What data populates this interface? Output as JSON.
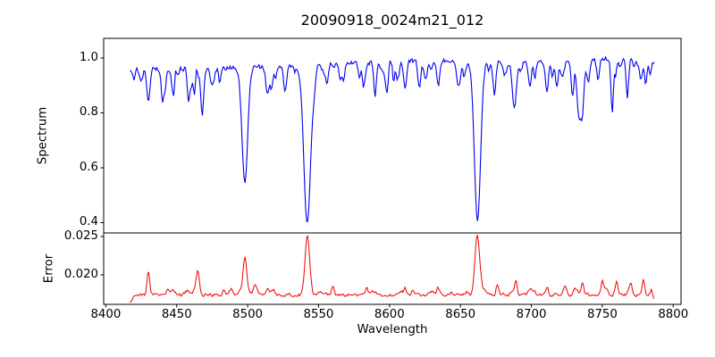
{
  "title": "20090918_0024m21_012",
  "chart_data": [
    {
      "type": "line",
      "name": "spectrum",
      "ylabel": "Spectrum",
      "color": "#0000ee",
      "x_start": 8417,
      "x_end": 8787,
      "sample_step": 0.7,
      "xlim": [
        8398.5,
        8805.5
      ],
      "ylim": [
        0.3626,
        1.0715
      ],
      "yticks": [
        {
          "value": 1.0,
          "label": "1.0"
        },
        {
          "value": 0.8,
          "label": "0.8"
        },
        {
          "value": 0.6,
          "label": "0.6"
        },
        {
          "value": 0.4,
          "label": "0.4"
        }
      ],
      "continuum": {
        "base": 0.958,
        "slope": 0.0001,
        "ref": 8417,
        "humps": [
          {
            "center": 8612,
            "height": 0.012,
            "sigma": 35
          },
          {
            "center": 8772,
            "height": 0.012,
            "sigma": 18
          }
        ]
      },
      "noise_amplitude": 0.012,
      "noise_seed": 20090918,
      "micro_line_count": 70,
      "absorption_lines": [
        {
          "center": 8430,
          "depth": 0.11,
          "sigma": 1.1
        },
        {
          "center": 8440,
          "depth": 0.06,
          "sigma": 0.9
        },
        {
          "center": 8447,
          "depth": 0.07,
          "sigma": 0.9
        },
        {
          "center": 8468,
          "depth": 0.11,
          "sigma": 1.1
        },
        {
          "center": 8498,
          "depth": 0.42,
          "sigma": 2.0
        },
        {
          "center": 8514,
          "depth": 0.1,
          "sigma": 1.2
        },
        {
          "center": 8527,
          "depth": 0.06,
          "sigma": 0.9
        },
        {
          "center": 8542,
          "depth": 0.575,
          "sigma": 2.4
        },
        {
          "center": 8556,
          "depth": 0.06,
          "sigma": 0.9
        },
        {
          "center": 8582,
          "depth": 0.08,
          "sigma": 1.0
        },
        {
          "center": 8598,
          "depth": 0.09,
          "sigma": 1.0
        },
        {
          "center": 8611,
          "depth": 0.1,
          "sigma": 1.0
        },
        {
          "center": 8621,
          "depth": 0.1,
          "sigma": 1.0
        },
        {
          "center": 8648,
          "depth": 0.08,
          "sigma": 1.0
        },
        {
          "center": 8662,
          "depth": 0.555,
          "sigma": 2.2
        },
        {
          "center": 8674,
          "depth": 0.12,
          "sigma": 1.0
        },
        {
          "center": 8688,
          "depth": 0.165,
          "sigma": 1.4
        },
        {
          "center": 8699,
          "depth": 0.1,
          "sigma": 1.0
        },
        {
          "center": 8711,
          "depth": 0.11,
          "sigma": 1.0
        },
        {
          "center": 8718,
          "depth": 0.09,
          "sigma": 0.9
        },
        {
          "center": 8729,
          "depth": 0.1,
          "sigma": 1.0
        },
        {
          "center": 8736,
          "depth": 0.13,
          "sigma": 1.1
        },
        {
          "center": 8747,
          "depth": 0.08,
          "sigma": 0.9
        },
        {
          "center": 8757,
          "depth": 0.07,
          "sigma": 0.9
        },
        {
          "center": 8768,
          "depth": 0.08,
          "sigma": 0.9
        },
        {
          "center": 8781,
          "depth": 0.07,
          "sigma": 0.9
        }
      ]
    },
    {
      "type": "line",
      "name": "error",
      "ylabel": "Error",
      "xlabel": "Wavelength",
      "color": "#ee0000",
      "x_start": 8417,
      "x_end": 8787,
      "sample_step": 0.7,
      "xlim": [
        8398.5,
        8805.5
      ],
      "ylim": [
        0.016163,
        0.025465
      ],
      "yticks": [
        {
          "value": 0.025,
          "label": "0.025"
        },
        {
          "value": 0.02,
          "label": "0.020"
        }
      ],
      "xticks": [
        {
          "value": 8400,
          "label": "8400"
        },
        {
          "value": 8450,
          "label": "8450"
        },
        {
          "value": 8500,
          "label": "8500"
        },
        {
          "value": 8550,
          "label": "8550"
        },
        {
          "value": 8600,
          "label": "8600"
        },
        {
          "value": 8650,
          "label": "8650"
        },
        {
          "value": 8700,
          "label": "8700"
        },
        {
          "value": 8750,
          "label": "8750"
        },
        {
          "value": 8800,
          "label": "8800"
        }
      ],
      "baseline": 0.0174,
      "noise_amplitude": 0.00028,
      "noise_seed": 24012,
      "micro_bump_count": 45,
      "peaks": [
        {
          "center": 8416,
          "height": -0.0009,
          "sigma": 2.5
        },
        {
          "center": 8430,
          "height": 0.003,
          "sigma": 0.9
        },
        {
          "center": 8444,
          "height": 0.0009,
          "sigma": 0.8
        },
        {
          "center": 8465,
          "height": 0.0022,
          "sigma": 0.9
        },
        {
          "center": 8483,
          "height": 0.0007,
          "sigma": 0.8
        },
        {
          "center": 8498,
          "height": 0.0049,
          "sigma": 1.3
        },
        {
          "center": 8505,
          "height": 0.001,
          "sigma": 1.0
        },
        {
          "center": 8514,
          "height": 0.0009,
          "sigma": 0.9
        },
        {
          "center": 8542,
          "height": 0.0078,
          "sigma": 1.6
        },
        {
          "center": 8560,
          "height": 0.0012,
          "sigma": 0.9
        },
        {
          "center": 8584,
          "height": 0.001,
          "sigma": 0.9
        },
        {
          "center": 8611,
          "height": 0.0009,
          "sigma": 0.9
        },
        {
          "center": 8634,
          "height": 0.0009,
          "sigma": 0.9
        },
        {
          "center": 8662,
          "height": 0.0071,
          "sigma": 1.6
        },
        {
          "center": 8676,
          "height": 0.0013,
          "sigma": 0.9
        },
        {
          "center": 8689,
          "height": 0.0017,
          "sigma": 1.0
        },
        {
          "center": 8700,
          "height": 0.0009,
          "sigma": 0.9
        },
        {
          "center": 8711,
          "height": 0.0011,
          "sigma": 0.9
        },
        {
          "center": 8724,
          "height": 0.001,
          "sigma": 0.9
        },
        {
          "center": 8736,
          "height": 0.0014,
          "sigma": 0.9
        },
        {
          "center": 8750,
          "height": 0.0013,
          "sigma": 0.9
        },
        {
          "center": 8760,
          "height": 0.0017,
          "sigma": 0.9
        },
        {
          "center": 8770,
          "height": 0.0016,
          "sigma": 0.9
        },
        {
          "center": 8779,
          "height": 0.0019,
          "sigma": 0.9
        },
        {
          "center": 8788,
          "height": -0.001,
          "sigma": 1.8
        }
      ]
    }
  ]
}
